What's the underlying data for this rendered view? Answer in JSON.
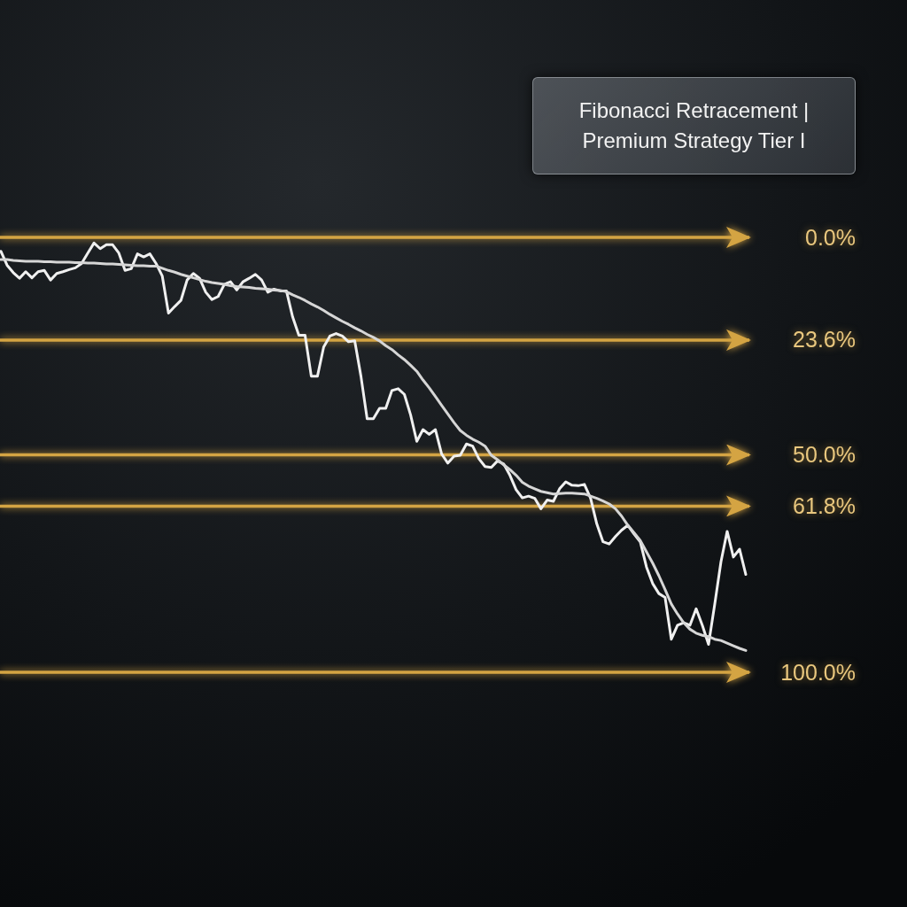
{
  "chart_data": {
    "type": "line",
    "title": "Fibonacci Retracement | Premium Strategy Tier I",
    "categories": [
      null,
      null,
      null,
      null,
      null,
      null,
      null,
      null,
      null,
      null,
      null,
      null,
      null,
      null,
      null,
      null,
      null,
      null,
      null,
      null,
      null,
      null,
      null,
      null,
      null,
      null,
      null,
      null,
      null,
      null,
      null,
      null,
      null,
      null,
      null,
      null,
      null,
      null,
      null,
      null,
      null,
      null,
      null,
      null,
      null,
      null,
      null,
      null,
      null,
      null,
      null,
      null,
      null,
      null,
      null,
      null,
      null,
      null,
      null,
      null,
      null,
      null,
      null,
      null,
      null,
      null,
      null,
      null,
      null,
      null,
      null,
      null,
      null,
      null,
      null,
      null,
      null,
      null,
      null,
      null,
      null,
      null,
      null,
      null,
      null,
      null,
      null,
      null,
      null,
      null,
      null,
      null,
      null,
      null,
      null,
      null,
      null,
      null,
      null,
      null,
      null,
      null,
      null,
      null,
      null,
      null,
      null,
      null,
      null,
      null,
      null,
      null,
      null,
      null,
      null,
      null,
      null,
      null,
      null,
      null,
      null
    ],
    "series": [
      {
        "color": "#f0f0f0",
        "values": [
          3.2,
          6.4,
          8.1,
          9.4,
          7.9,
          9.3,
          7.9,
          7.6,
          9.8,
          8.3,
          7.9,
          7.4,
          7.0,
          6.0,
          3.6,
          1.3,
          2.6,
          1.7,
          1.7,
          3.6,
          7.6,
          7.2,
          3.8,
          4.5,
          3.8,
          6.0,
          8.9,
          17.4,
          15.9,
          14.5,
          9.8,
          8.3,
          9.4,
          12.6,
          14.3,
          13.6,
          10.8,
          10.2,
          12.1,
          10.2,
          9.4,
          8.5,
          9.8,
          12.6,
          11.9,
          12.3,
          12.3,
          18.3,
          22.5,
          22.5,
          31.9,
          31.9,
          25.2,
          22.7,
          22.1,
          22.7,
          24.0,
          23.8,
          31.9,
          41.7,
          41.7,
          39.3,
          39.3,
          35.2,
          34.8,
          36.1,
          40.8,
          46.9,
          44.2,
          45.3,
          44.2,
          49.8,
          51.9,
          50.3,
          50.1,
          47.5,
          48.0,
          50.9,
          52.7,
          52.9,
          51.4,
          52.1,
          54.7,
          58.0,
          59.9,
          59.5,
          60.0,
          62.4,
          60.4,
          60.7,
          57.8,
          56.2,
          57.0,
          57.1,
          56.8,
          60.0,
          65.9,
          70.0,
          70.5,
          68.8,
          67.3,
          66.2,
          68.2,
          70.0,
          75.8,
          79.6,
          81.9,
          82.8,
          92.4,
          89.2,
          88.6,
          89.2,
          85.4,
          89.2,
          93.6,
          84.3,
          74.6,
          67.6,
          73.5,
          71.7,
          77.5
        ]
      },
      {
        "color": "#d6d6d6",
        "values": [
          5.1,
          5.1,
          5.3,
          5.4,
          5.5,
          5.5,
          5.5,
          5.6,
          5.6,
          5.7,
          5.7,
          5.7,
          5.8,
          5.8,
          5.9,
          5.9,
          6.0,
          6.1,
          6.1,
          6.2,
          6.3,
          6.4,
          6.5,
          6.5,
          6.6,
          6.6,
          7.1,
          7.6,
          8.0,
          8.5,
          8.9,
          9.3,
          9.7,
          10.1,
          10.4,
          10.6,
          10.8,
          11.1,
          11.3,
          11.4,
          11.5,
          11.7,
          11.8,
          11.9,
          12.1,
          12.2,
          12.5,
          13.2,
          13.8,
          14.5,
          15.3,
          16.0,
          16.8,
          17.7,
          18.5,
          19.3,
          20.0,
          20.8,
          21.5,
          22.3,
          23.0,
          23.8,
          24.9,
          25.8,
          27.0,
          28.1,
          29.4,
          30.8,
          32.8,
          34.6,
          36.6,
          38.6,
          40.6,
          42.6,
          44.4,
          45.5,
          46.4,
          47.1,
          48.0,
          50.1,
          51.1,
          52.3,
          53.4,
          54.7,
          56.3,
          57.2,
          57.8,
          58.4,
          58.7,
          59.0,
          58.9,
          58.8,
          58.8,
          58.9,
          59.0,
          59.5,
          60.0,
          60.6,
          61.3,
          62.4,
          64.1,
          66.2,
          67.9,
          69.7,
          72.3,
          74.9,
          77.8,
          81.0,
          84.3,
          86.6,
          88.6,
          90.1,
          91.0,
          91.5,
          91.8,
          92.4,
          92.7,
          93.3,
          93.9,
          94.5,
          95.0
        ]
      }
    ],
    "ylim": [
      100,
      0
    ],
    "yticks": [
      {
        "value": 0,
        "label": "0.0%"
      },
      {
        "value": 23.6,
        "label": "23.6%"
      },
      {
        "value": 50,
        "label": "50.0%"
      },
      {
        "value": 61.8,
        "label": "61.8%"
      },
      {
        "value": 100,
        "label": "100.0%"
      }
    ],
    "tick_labels": "y",
    "grid": "y"
  }
}
